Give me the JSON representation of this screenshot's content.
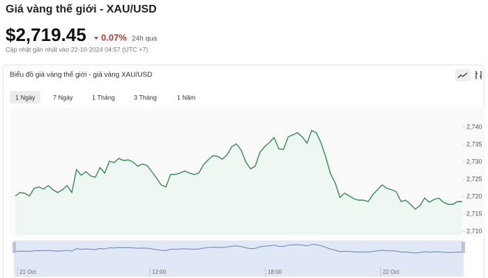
{
  "header": {
    "title": "Giá vàng thế giới - XAU/USD",
    "price": "$2,719.45",
    "change": "0.07%",
    "period": "24h qua",
    "updated": "Cập nhật gần nhất vào 22-10-2024 04:57 (UTC +7)"
  },
  "card": {
    "title": "Biểu đồ giá vàng thế giới - giá vàng XAU/USD",
    "tabs": [
      "1 Ngày",
      "7 Ngày",
      "1 Tháng",
      "3 Tháng",
      "1 Năm"
    ]
  },
  "chart_data": {
    "type": "line",
    "color": "#2e8b57",
    "fill": "#eef7f1",
    "values": [
      2720.2,
      2721.2,
      2721,
      2720.2,
      2722.4,
      2722.8,
      2722.2,
      2723.2,
      2722,
      2721.2,
      2722,
      2723.2,
      2721.2,
      2727.8,
      2726.2,
      2727.2,
      2726,
      2725.6,
      2728.4,
      2726.8,
      2730.2,
      2729.8,
      2731,
      2730.4,
      2730.6,
      2730,
      2728.8,
      2729.4,
      2729,
      2727.2,
      2725.4,
      2723.4,
      2722.8,
      2726.4,
      2726.4,
      2726.8,
      2727.4,
      2726.8,
      2726.4,
      2726.8,
      2729.2,
      2730.6,
      2731.8,
      2731.6,
      2730.8,
      2732,
      2734.4,
      2735.2,
      2733.4,
      2730,
      2728,
      2728.8,
      2732.8,
      2734.4,
      2735.6,
      2737,
      2733.8,
      2733.6,
      2737.2,
      2737.8,
      2738.4,
      2737.2,
      2735.4,
      2739,
      2738.4,
      2735.4,
      2731.4,
      2726.6,
      2724,
      2719.8,
      2721,
      2720.2,
      2719.4,
      2719,
      2719,
      2718.6,
      2720.6,
      2722,
      2723.4,
      2722.4,
      2722,
      2721.4,
      2718.6,
      2719,
      2717.8,
      2716.4,
      2717.4,
      2719.6,
      2718.4,
      2719.2,
      2719.6,
      2718.4,
      2717.8,
      2717.8,
      2718.6,
      2718.6
    ],
    "ylim": [
      2709,
      2744
    ],
    "yticks": [
      {
        "value": 2710,
        "label": "2,710"
      },
      {
        "value": 2715,
        "label": "2,715"
      },
      {
        "value": 2720,
        "label": "2,720"
      },
      {
        "value": 2725,
        "label": "2,725"
      },
      {
        "value": 2730,
        "label": "2,730"
      },
      {
        "value": 2735,
        "label": "2,735"
      },
      {
        "value": 2740,
        "label": "2,740"
      }
    ],
    "navigator_labels": [
      "21 Oct",
      "12:00",
      "18:00",
      "22 Oct"
    ]
  }
}
